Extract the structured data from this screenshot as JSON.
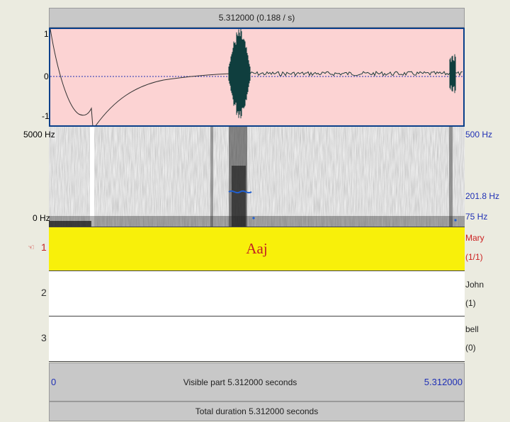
{
  "header": {
    "cursor_time": "5.312000 (0.188 / s)"
  },
  "waveform": {
    "y_max": "1",
    "y_zero": "0",
    "y_min": "-1"
  },
  "spectrogram": {
    "left_top": "5000 Hz",
    "left_bottom": "0 Hz",
    "right_top": "500 Hz",
    "right_mid": "201.8 Hz",
    "right_bottom": "75 Hz"
  },
  "tiers": [
    {
      "number": "1",
      "marker": "☜",
      "interval_text": "Aaj",
      "name": "Mary",
      "count": "(1/1)",
      "selected": true
    },
    {
      "number": "2",
      "interval_text": "",
      "name": "John",
      "count": "(1)",
      "selected": false
    },
    {
      "number": "3",
      "interval_text": "",
      "name": "bell",
      "count": "(0)",
      "selected": false
    }
  ],
  "footer": {
    "start": "0",
    "visible_part": "Visible part 5.312000 seconds",
    "end": "5.312000",
    "total_duration": "Total duration 5.312000 seconds"
  },
  "colors": {
    "waveform_bg": "#fcd3d3",
    "waveform_border": "#0a3f8a",
    "selected_tier": "#f8f00a",
    "pitch": "#1f5fd0",
    "accent_text": "#1f2fb5",
    "tier_name_selected": "#c22222"
  }
}
